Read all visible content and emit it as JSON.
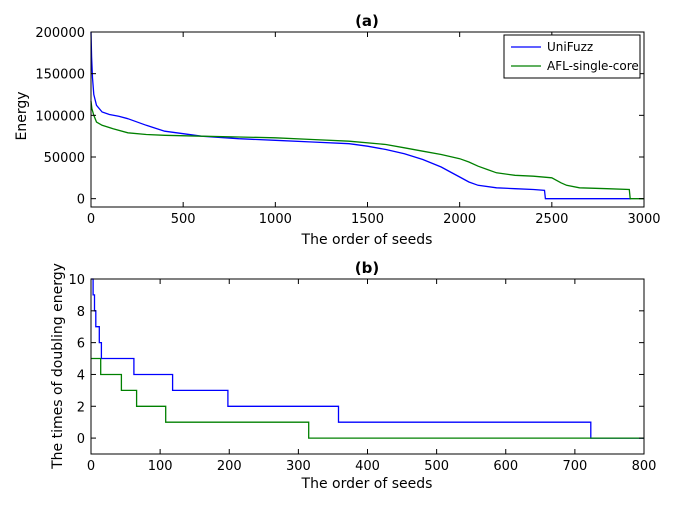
{
  "chart_data": [
    {
      "type": "line",
      "title": "(a)",
      "xlabel": "The order of seeds",
      "ylabel": "Energy",
      "xlim": [
        0,
        3000
      ],
      "ylim": [
        -10000,
        200000
      ],
      "xticks": [
        "0",
        "500",
        "1000",
        "1500",
        "2000",
        "2500",
        "3000"
      ],
      "yticks": [
        "0",
        "50000",
        "100000",
        "150000",
        "200000"
      ],
      "legend_position": "top-right",
      "grid": false,
      "series": [
        {
          "name": "UniFuzz",
          "color": "#0000ff",
          "step": false,
          "points": [
            [
              0,
              200000
            ],
            [
              3,
              170000
            ],
            [
              8,
              145000
            ],
            [
              15,
              125000
            ],
            [
              30,
              112000
            ],
            [
              60,
              104000
            ],
            [
              100,
              101000
            ],
            [
              150,
              99000
            ],
            [
              200,
              96000
            ],
            [
              300,
              88000
            ],
            [
              400,
              81000
            ],
            [
              500,
              78000
            ],
            [
              600,
              75000
            ],
            [
              800,
              72000
            ],
            [
              1000,
              70000
            ],
            [
              1200,
              68000
            ],
            [
              1400,
              66000
            ],
            [
              1500,
              63000
            ],
            [
              1600,
              59000
            ],
            [
              1700,
              54000
            ],
            [
              1800,
              47000
            ],
            [
              1900,
              38000
            ],
            [
              1950,
              32000
            ],
            [
              2000,
              26000
            ],
            [
              2050,
              20000
            ],
            [
              2100,
              16000
            ],
            [
              2200,
              13000
            ],
            [
              2300,
              12000
            ],
            [
              2400,
              11000
            ],
            [
              2460,
              10000
            ],
            [
              2465,
              0
            ],
            [
              2930,
              0
            ]
          ]
        },
        {
          "name": "AFL-single-core",
          "color": "#008000",
          "step": false,
          "points": [
            [
              0,
              117000
            ],
            [
              5,
              108000
            ],
            [
              15,
              100000
            ],
            [
              30,
              92000
            ],
            [
              60,
              88000
            ],
            [
              120,
              84000
            ],
            [
              200,
              79000
            ],
            [
              300,
              77000
            ],
            [
              400,
              76000
            ],
            [
              600,
              75000
            ],
            [
              800,
              74000
            ],
            [
              1000,
              73000
            ],
            [
              1200,
              71000
            ],
            [
              1400,
              69000
            ],
            [
              1600,
              65000
            ],
            [
              1700,
              61000
            ],
            [
              1800,
              57000
            ],
            [
              1900,
              53000
            ],
            [
              2000,
              48000
            ],
            [
              2050,
              44000
            ],
            [
              2100,
              39000
            ],
            [
              2150,
              35000
            ],
            [
              2200,
              31000
            ],
            [
              2300,
              28000
            ],
            [
              2400,
              27000
            ],
            [
              2500,
              25000
            ],
            [
              2550,
              19000
            ],
            [
              2580,
              16000
            ],
            [
              2650,
              13000
            ],
            [
              2800,
              12000
            ],
            [
              2920,
              11000
            ],
            [
              2925,
              0
            ],
            [
              3000,
              0
            ]
          ]
        }
      ]
    },
    {
      "type": "line",
      "title": "(b)",
      "xlabel": "The order of seeds",
      "ylabel": "The times of doubling energy",
      "xlim": [
        0,
        800
      ],
      "ylim": [
        -1,
        10
      ],
      "xticks": [
        "0",
        "100",
        "200",
        "300",
        "400",
        "500",
        "600",
        "700",
        "800"
      ],
      "yticks": [
        "0",
        "2",
        "4",
        "6",
        "8",
        "10"
      ],
      "grid": false,
      "series": [
        {
          "name": "UniFuzz",
          "color": "#0000ff",
          "step": true,
          "points": [
            [
              0,
              10
            ],
            [
              3,
              9
            ],
            [
              5,
              8
            ],
            [
              7,
              7
            ],
            [
              12,
              6
            ],
            [
              15,
              5
            ],
            [
              62,
              4
            ],
            [
              118,
              3
            ],
            [
              198,
              2
            ],
            [
              358,
              1
            ],
            [
              723,
              0
            ],
            [
              800,
              0
            ]
          ]
        },
        {
          "name": "AFL-single-core",
          "color": "#008000",
          "step": true,
          "points": [
            [
              0,
              5
            ],
            [
              14,
              4
            ],
            [
              44,
              3
            ],
            [
              66,
              2
            ],
            [
              108,
              1
            ],
            [
              315,
              0
            ],
            [
              800,
              0
            ]
          ]
        }
      ]
    }
  ]
}
